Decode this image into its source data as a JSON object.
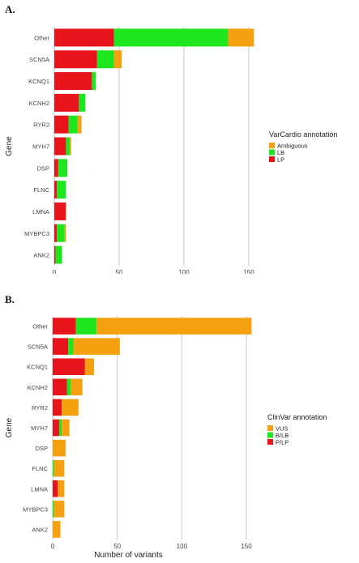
{
  "figure": {
    "panel_a_label": "A.",
    "panel_b_label": "B."
  },
  "chart_data": [
    {
      "type": "bar",
      "orientation": "horizontal",
      "stacked": true,
      "panel": "A.",
      "categories": [
        "Other",
        "SCN5A",
        "KCNQ1",
        "KCNH2",
        "RYR2",
        "MYH7",
        "DSP",
        "FLNC",
        "LMNA",
        "MYBPC3",
        "ANK2"
      ],
      "series": [
        {
          "name": "LP",
          "color": "#e8141b",
          "values": [
            46,
            33,
            29,
            19,
            11,
            9,
            3,
            2,
            9,
            2,
            1
          ]
        },
        {
          "name": "LB",
          "color": "#1ee61e",
          "values": [
            88,
            13,
            3,
            5,
            7,
            3,
            7,
            7,
            0,
            6,
            5
          ]
        },
        {
          "name": "Ambiguous",
          "color": "#f5a00f",
          "values": [
            20,
            6,
            0,
            0,
            3,
            1,
            0,
            0,
            0,
            1,
            0
          ]
        }
      ],
      "xlabel": "Number of variants",
      "ylabel": "Gene",
      "xlim": [
        0,
        155
      ],
      "xticks": [
        0,
        50,
        100,
        150
      ],
      "legend_title": "VarCardio annotation",
      "legend_order": [
        "Ambiguous",
        "LB",
        "LP"
      ],
      "legend_position": "right",
      "grid": "vertical major lines"
    },
    {
      "type": "bar",
      "orientation": "horizontal",
      "stacked": true,
      "panel": "B.",
      "categories": [
        "Other",
        "SCN5A",
        "KCNQ1",
        "KCNH2",
        "RYR2",
        "MYH7",
        "DSP",
        "FLNC",
        "LMNA",
        "MYBPC3",
        "ANK2"
      ],
      "series": [
        {
          "name": "P/LP",
          "color": "#e8141b",
          "values": [
            18,
            12,
            25,
            11,
            7,
            5,
            0,
            0,
            4,
            0,
            0
          ]
        },
        {
          "name": "B/LB",
          "color": "#1ee61e",
          "values": [
            16,
            4,
            0,
            3,
            0,
            2,
            0,
            1,
            0,
            1,
            0
          ]
        },
        {
          "name": "VUS",
          "color": "#f5a00f",
          "values": [
            120,
            36,
            7,
            9,
            13,
            6,
            10,
            8,
            5,
            8,
            6
          ]
        }
      ],
      "xlabel": "Number of variants",
      "ylabel": "Gene",
      "xlim": [
        0,
        155
      ],
      "xticks": [
        0,
        50,
        100,
        150
      ],
      "legend_title": "ClinVar annotation",
      "legend_order": [
        "VUS",
        "B/LB",
        "P/LP"
      ],
      "legend_position": "right",
      "grid": "vertical major lines"
    }
  ]
}
